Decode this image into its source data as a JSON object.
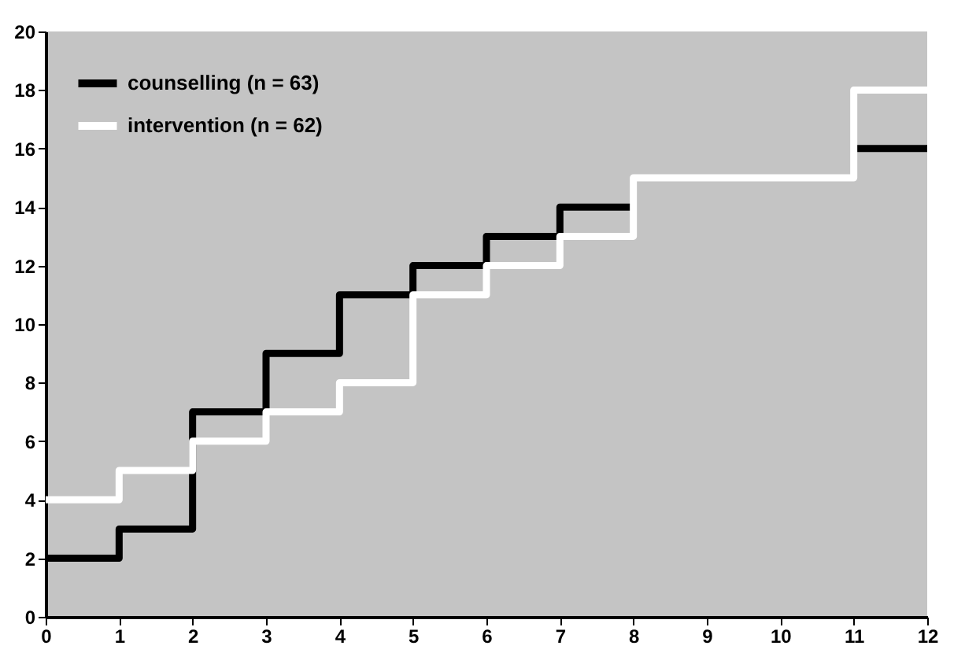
{
  "chart_data": {
    "type": "step",
    "xlim": [
      0,
      12
    ],
    "ylim": [
      0,
      20
    ],
    "xticks": [
      0,
      1,
      2,
      3,
      4,
      5,
      6,
      7,
      8,
      9,
      10,
      11,
      12
    ],
    "yticks": [
      0,
      2,
      4,
      6,
      8,
      10,
      12,
      14,
      16,
      18,
      20
    ],
    "legend": "top left",
    "line_style": "solid",
    "series": [
      {
        "name": "counselling (n = 63)",
        "color": "#000000",
        "x": [
          0,
          1,
          2,
          3,
          4,
          5,
          6,
          7,
          8,
          9,
          11,
          12
        ],
        "values": [
          2,
          3,
          7,
          9,
          11,
          12,
          13,
          14,
          14,
          null,
          16,
          16
        ]
      },
      {
        "name": "intervention (n = 62)",
        "color": "#ffffff",
        "x": [
          0,
          1,
          2,
          3,
          4,
          5,
          6,
          7,
          8,
          11,
          12
        ],
        "values": [
          4,
          5,
          6,
          7,
          8,
          11,
          12,
          13,
          15,
          18,
          18
        ]
      }
    ]
  }
}
